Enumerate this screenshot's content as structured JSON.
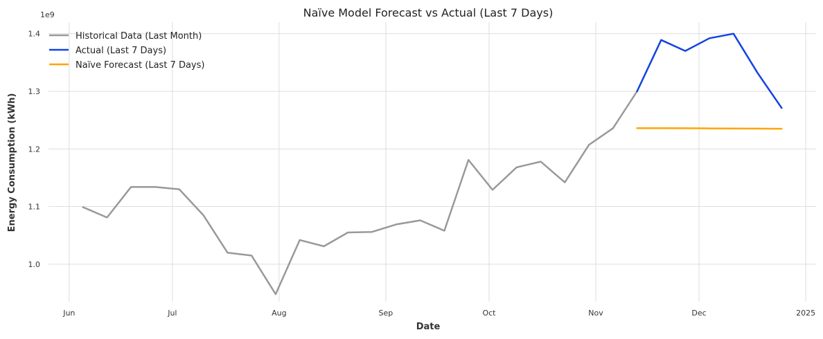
{
  "chart_data": {
    "type": "line",
    "title": "Naïve Model Forecast vs Actual (Last 7 Days)",
    "xlabel": "Date",
    "ylabel": "Energy Consumption (kWh)",
    "y_offset_label": "1e9",
    "y_scale": 1000000000,
    "ylim": [
      0.935,
      1.42
    ],
    "xlim": [
      "2024-05-26",
      "2025-01-04"
    ],
    "x_ticks": [
      {
        "date": "2024-06-01",
        "label": "Jun"
      },
      {
        "date": "2024-07-01",
        "label": "Jul"
      },
      {
        "date": "2024-08-01",
        "label": "Aug"
      },
      {
        "date": "2024-09-01",
        "label": "Sep"
      },
      {
        "date": "2024-10-01",
        "label": "Oct"
      },
      {
        "date": "2024-11-01",
        "label": "Nov"
      },
      {
        "date": "2024-12-01",
        "label": "Dec"
      },
      {
        "date": "2025-01-01",
        "label": "2025"
      }
    ],
    "y_ticks": [
      {
        "value": 1.0,
        "label": "1.0"
      },
      {
        "value": 1.1,
        "label": "1.1"
      },
      {
        "value": 1.2,
        "label": "1.2"
      },
      {
        "value": 1.3,
        "label": "1.3"
      },
      {
        "value": 1.4,
        "label": "1.4"
      }
    ],
    "grid": true,
    "legend_position": "top-left",
    "series": [
      {
        "name": "Historical Data (Last Month)",
        "color": "#999999",
        "x": [
          "2024-06-05",
          "2024-06-12",
          "2024-06-19",
          "2024-06-26",
          "2024-07-03",
          "2024-07-10",
          "2024-07-17",
          "2024-07-24",
          "2024-07-31",
          "2024-08-07",
          "2024-08-14",
          "2024-08-21",
          "2024-08-28",
          "2024-09-04",
          "2024-09-11",
          "2024-09-18",
          "2024-09-25",
          "2024-10-02",
          "2024-10-09",
          "2024-10-16",
          "2024-10-23",
          "2024-10-30",
          "2024-11-06",
          "2024-11-13"
        ],
        "y": [
          1.099,
          1.081,
          1.134,
          1.134,
          1.13,
          1.085,
          1.02,
          1.015,
          0.948,
          1.042,
          1.031,
          1.055,
          1.056,
          1.069,
          1.076,
          1.058,
          1.181,
          1.129,
          1.168,
          1.178,
          1.142,
          1.207,
          1.236,
          1.3
        ]
      },
      {
        "name": "Actual (Last 7 Days)",
        "color": "#1143e0",
        "x": [
          "2024-11-13",
          "2024-11-20",
          "2024-11-27",
          "2024-12-04",
          "2024-12-11",
          "2024-12-18",
          "2024-12-25"
        ],
        "y": [
          1.3,
          1.389,
          1.37,
          1.392,
          1.4,
          1.332,
          1.271
        ]
      },
      {
        "name": "Naïve Forecast (Last 7 Days)",
        "color": "#ffa500",
        "x": [
          "2024-11-13",
          "2024-11-20",
          "2024-11-27",
          "2024-12-04",
          "2024-12-11",
          "2024-12-18",
          "2024-12-25"
        ],
        "y": [
          1.236,
          1.236,
          1.2358,
          1.2356,
          1.2354,
          1.2352,
          1.235
        ]
      }
    ]
  }
}
